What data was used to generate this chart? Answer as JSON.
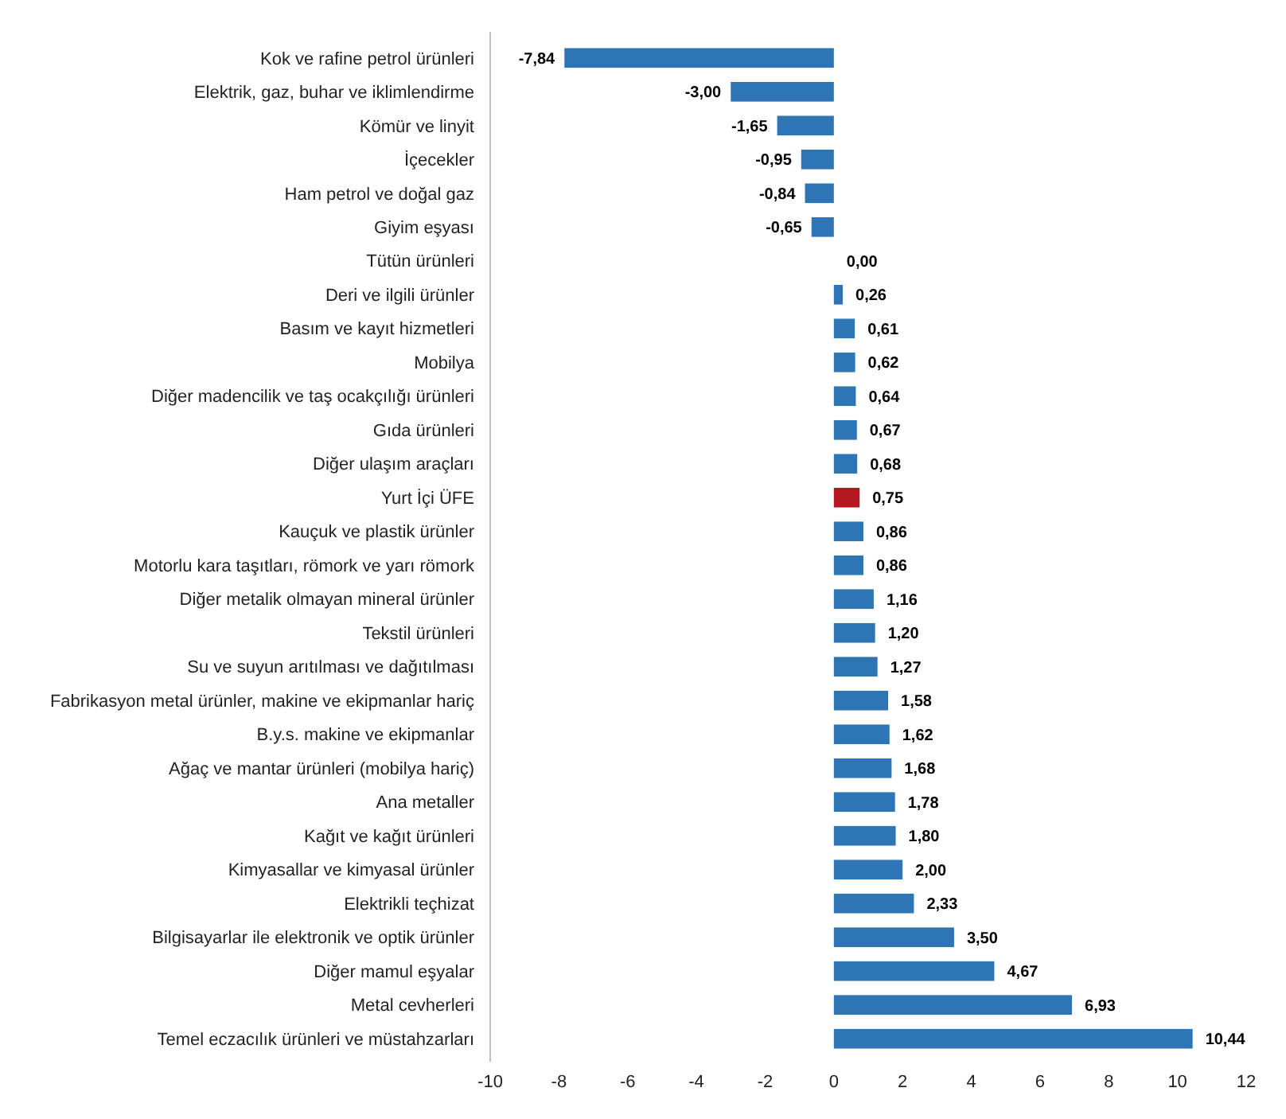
{
  "chart_data": {
    "type": "bar",
    "orientation": "horizontal",
    "categories": [
      "Kok ve rafine petrol ürünleri",
      "Elektrik, gaz, buhar ve iklimlendirme",
      "Kömür ve linyit",
      "İçecekler",
      "Ham petrol ve doğal gaz",
      "Giyim eşyası",
      "Tütün ürünleri",
      "Deri ve ilgili ürünler",
      "Basım ve kayıt hizmetleri",
      "Mobilya",
      "Diğer madencilik ve taş ocakçılığı ürünleri",
      "Gıda ürünleri",
      "Diğer ulaşım araçları",
      "Yurt İçi ÜFE",
      "Kauçuk ve plastik ürünler",
      "Motorlu kara taşıtları, römork ve yarı römork",
      "Diğer metalik olmayan mineral ürünler",
      "Tekstil ürünleri",
      "Su ve suyun arıtılması ve dağıtılması",
      "Fabrikasyon metal ürünler, makine ve ekipmanlar hariç",
      "B.y.s. makine ve ekipmanlar",
      "Ağaç ve mantar ürünleri (mobilya hariç)",
      "Ana metaller",
      "Kağıt ve kağıt ürünleri",
      "Kimyasallar ve kimyasal ürünler",
      "Elektrikli teçhizat",
      "Bilgisayarlar ile elektronik ve optik ürünler",
      "Diğer mamul eşyalar",
      "Metal cevherleri",
      "Temel eczacılık ürünleri ve müstahzarları"
    ],
    "values": [
      -7.84,
      -3.0,
      -1.65,
      -0.95,
      -0.84,
      -0.65,
      0.0,
      0.26,
      0.61,
      0.62,
      0.64,
      0.67,
      0.68,
      0.75,
      0.86,
      0.86,
      1.16,
      1.2,
      1.27,
      1.58,
      1.62,
      1.68,
      1.78,
      1.8,
      2.0,
      2.33,
      3.5,
      4.67,
      6.93,
      10.44
    ],
    "value_labels": [
      "-7,84",
      "-3,00",
      "-1,65",
      "-0,95",
      "-0,84",
      "-0,65",
      "0,00",
      "0,26",
      "0,61",
      "0,62",
      "0,64",
      "0,67",
      "0,68",
      "0,75",
      "0,86",
      "0,86",
      "1,16",
      "1,20",
      "1,27",
      "1,58",
      "1,62",
      "1,68",
      "1,78",
      "1,80",
      "2,00",
      "2,33",
      "3,50",
      "4,67",
      "6,93",
      "10,44"
    ],
    "colors": [
      "#2e75b6",
      "#2e75b6",
      "#2e75b6",
      "#2e75b6",
      "#2e75b6",
      "#2e75b6",
      "#2e75b6",
      "#2e75b6",
      "#2e75b6",
      "#2e75b6",
      "#2e75b6",
      "#2e75b6",
      "#2e75b6",
      "#b4181e",
      "#2e75b6",
      "#2e75b6",
      "#2e75b6",
      "#2e75b6",
      "#2e75b6",
      "#2e75b6",
      "#2e75b6",
      "#2e75b6",
      "#2e75b6",
      "#2e75b6",
      "#2e75b6",
      "#2e75b6",
      "#2e75b6",
      "#2e75b6",
      "#2e75b6",
      "#2e75b6"
    ],
    "xlim": [
      -10,
      12
    ],
    "xticks": [
      -10,
      -8,
      -6,
      -4,
      -2,
      0,
      2,
      4,
      6,
      8,
      10,
      12
    ]
  }
}
